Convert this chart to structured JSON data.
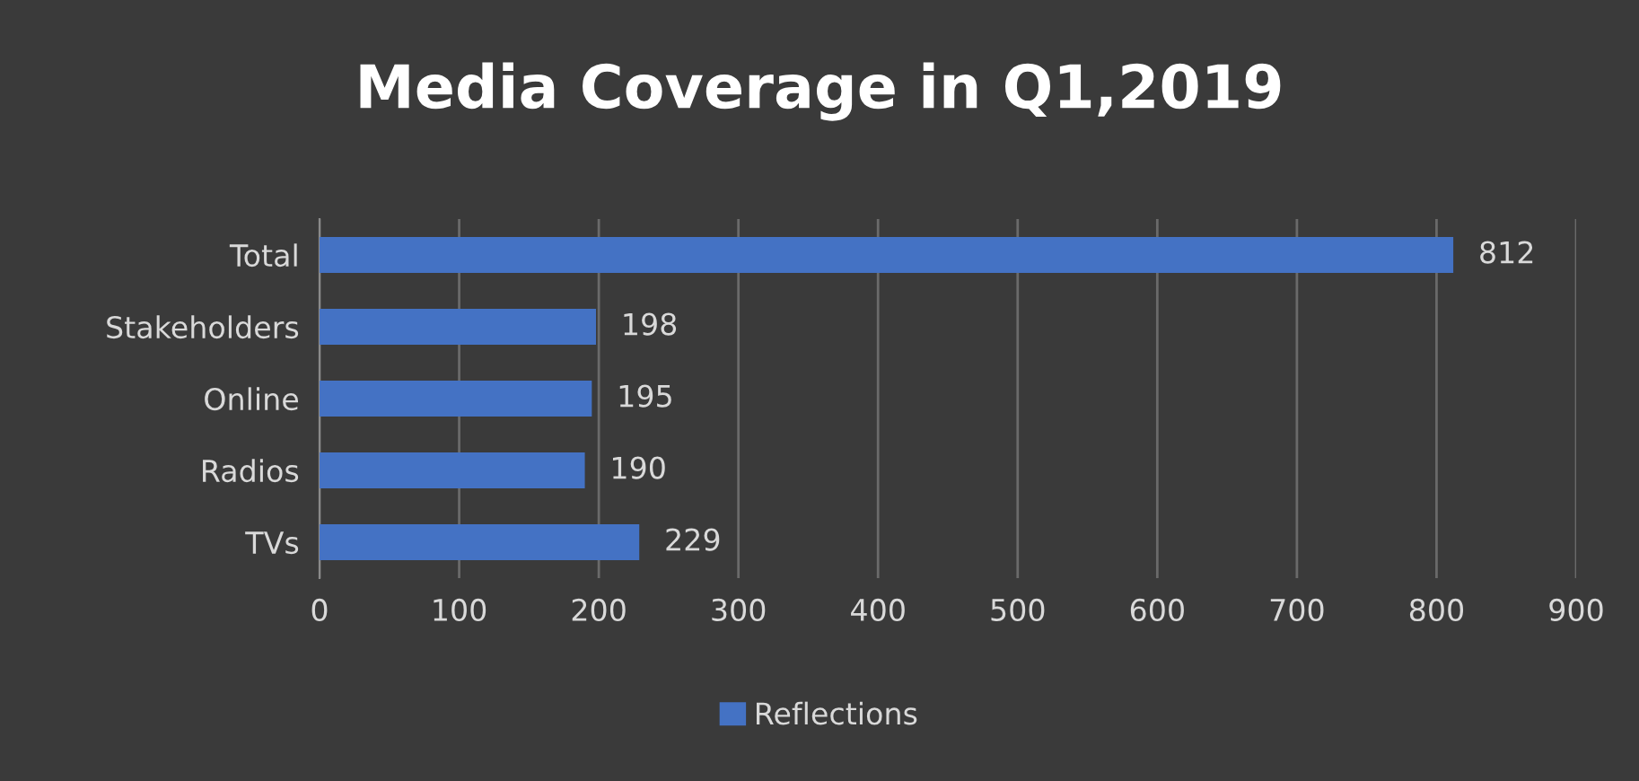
{
  "chart_data": {
    "type": "bar",
    "orientation": "horizontal",
    "title": "Media Coverage in Q1,2019",
    "categories": [
      "Total",
      "Stakeholders",
      "Online",
      "Radios",
      "TVs"
    ],
    "series": [
      {
        "name": "Reflections",
        "color": "#4472c4",
        "values": [
          812,
          198,
          195,
          190,
          229
        ]
      }
    ],
    "xlim": [
      0,
      900
    ],
    "xticks": [
      0,
      100,
      200,
      300,
      400,
      500,
      600,
      700,
      800,
      900
    ],
    "grid": "x",
    "legend": "bottom",
    "data_labels": true
  }
}
